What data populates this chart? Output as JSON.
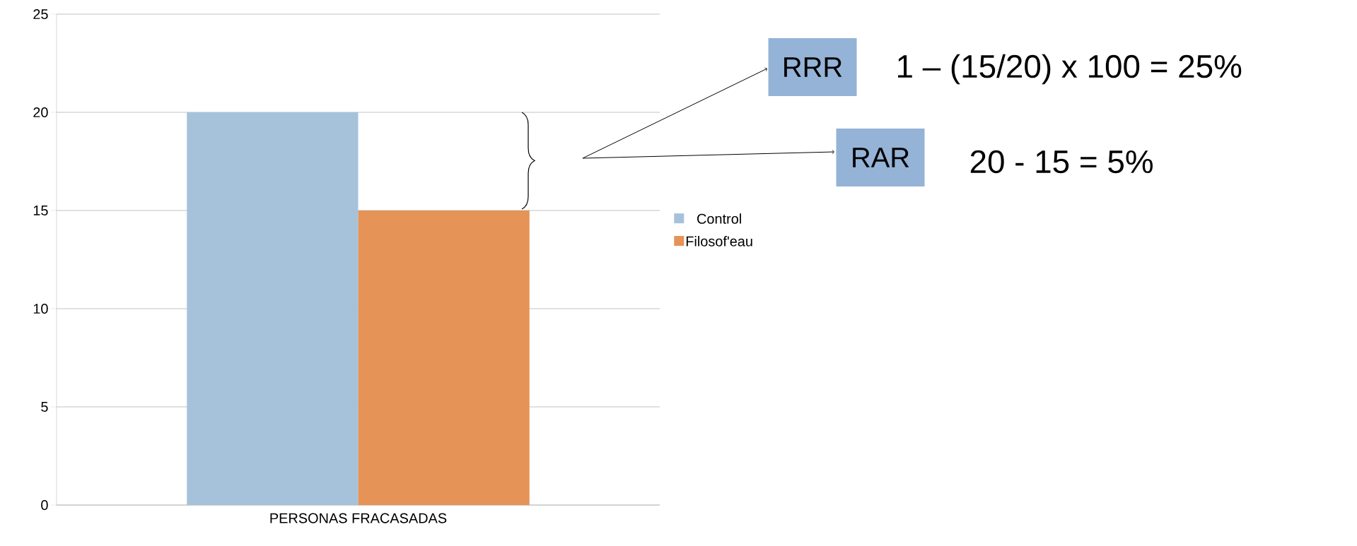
{
  "chart_data": {
    "type": "bar",
    "categories": [
      "PERSONAS FRACASADAS"
    ],
    "series": [
      {
        "name": "Control",
        "color": "#a6c2db",
        "values": [
          20
        ]
      },
      {
        "name": "Filosof'eau",
        "color": "#e59356",
        "values": [
          15
        ]
      }
    ],
    "ylim": [
      0,
      25
    ],
    "yticks": [
      0,
      5,
      10,
      15,
      20,
      25
    ],
    "grid": "y",
    "legend": "right",
    "annotations": [
      "RRR",
      "1 – (15/20) x 100 = 25%",
      "RAR",
      "20 - 15 = 5%"
    ]
  }
}
